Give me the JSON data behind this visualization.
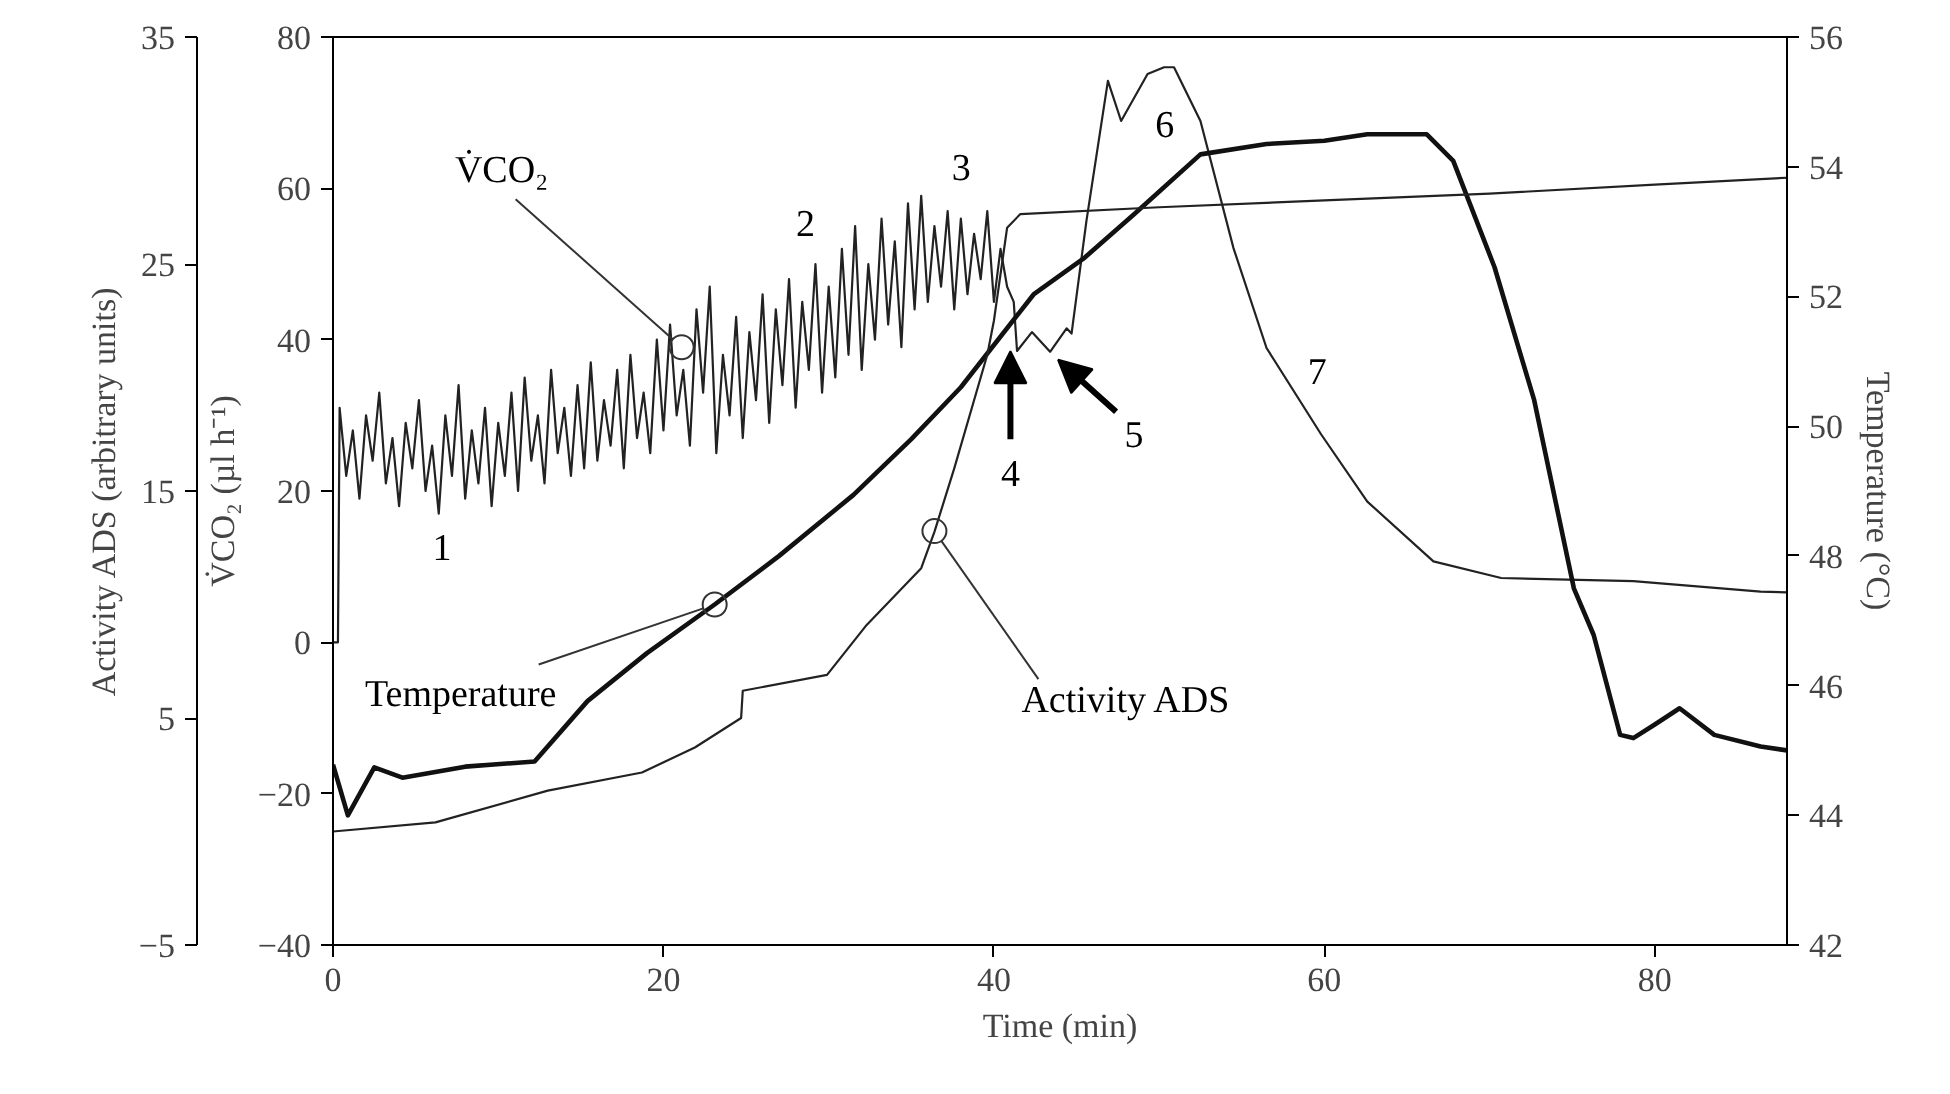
{
  "chart_data": {
    "type": "line",
    "xlabel": "Time (min)",
    "ylabel": "V̇CO₂ (µl h⁻¹)",
    "y2label": "Temperature (°C)",
    "y3label": "Activity ADS (arbitrary units)",
    "xlim": [
      0,
      88
    ],
    "xticks": [
      0,
      20,
      40,
      60,
      80
    ],
    "ylim": [
      -40,
      80
    ],
    "yticks": [
      {
        "value": -40,
        "label": "−40"
      },
      {
        "value": -20,
        "label": "−20"
      },
      0,
      20,
      40,
      60,
      80
    ],
    "y2lim": [
      42,
      56
    ],
    "y2ticks": [
      42,
      44,
      46,
      48,
      50,
      52,
      54,
      56
    ],
    "y3lim": [
      -5,
      35
    ],
    "y3ticks": [
      {
        "value": -5,
        "label": "−5"
      },
      5,
      15,
      25,
      35
    ],
    "grid": false,
    "series": [
      {
        "color": "#222222",
        "axis": "y",
        "x": [
          0,
          0.3,
          0.4,
          0.8,
          1.2,
          1.6,
          2.0,
          2.4,
          2.8,
          3.2,
          3.6,
          4.0,
          4.4,
          4.8,
          5.2,
          5.6,
          6.0,
          6.4,
          6.8,
          7.2,
          7.6,
          8.0,
          8.4,
          8.8,
          9.2,
          9.6,
          10.0,
          10.4,
          10.8,
          11.2,
          11.6,
          12.0,
          12.4,
          12.8,
          13.2,
          13.6,
          14.0,
          14.4,
          14.8,
          15.2,
          15.6,
          16.0,
          16.4,
          16.8,
          17.2,
          17.6,
          18.0,
          18.4,
          18.8,
          19.2,
          19.6,
          20.0,
          20.4,
          20.8,
          21.2,
          21.6,
          22.0,
          22.4,
          22.8,
          23.2,
          23.6,
          24.0,
          24.4,
          24.8,
          25.2,
          25.6,
          26.0,
          26.4,
          26.8,
          27.2,
          27.6,
          28.0,
          28.4,
          28.8,
          29.2,
          29.6,
          30.0,
          30.4,
          30.8,
          31.2,
          31.6,
          32.0,
          32.4,
          32.8,
          33.2,
          33.6,
          34.0,
          34.4,
          34.8,
          35.2,
          35.6,
          36.0,
          36.4,
          36.8,
          37.2,
          37.6,
          38.0,
          38.4,
          38.8,
          39.2,
          39.6,
          40.0,
          40.4,
          40.8,
          41.2,
          41.4,
          42.3,
          43.4,
          44.4,
          44.7,
          45.6,
          46.9,
          47.7,
          49.3,
          50.3,
          50.9,
          52.5,
          54.5,
          56.5,
          59.8,
          62.6,
          66.6,
          70.7,
          78.7,
          86.4,
          88
        ],
        "values": [
          0,
          0,
          31,
          22,
          28,
          19,
          30,
          24,
          33,
          21,
          27,
          18,
          29,
          23,
          32,
          20,
          26,
          17,
          30,
          22,
          34,
          19,
          28,
          21,
          31,
          18,
          29,
          22,
          33,
          20,
          35,
          24,
          30,
          21,
          36,
          25,
          31,
          22,
          34,
          23,
          37,
          24,
          32,
          26,
          36,
          23,
          38,
          27,
          33,
          25,
          40,
          28,
          42,
          30,
          36,
          26,
          44,
          33,
          47,
          25,
          38,
          30,
          43,
          27,
          41,
          32,
          46,
          29,
          44,
          34,
          48,
          31,
          45,
          36,
          50,
          33,
          47,
          35,
          52,
          38,
          55,
          36,
          50,
          40,
          56,
          42,
          53,
          39,
          58,
          44,
          59,
          45,
          55,
          47,
          57,
          44,
          56,
          46,
          54,
          48,
          57,
          45,
          52,
          47,
          45,
          38.5,
          41,
          38.4,
          41.5,
          40.8,
          55.7,
          74.2,
          68.9,
          75.1,
          76,
          76,
          68.9,
          52.1,
          38.9,
          27.5,
          18.6,
          10.7,
          8.5,
          8.1,
          6.7,
          6.6
        ]
      },
      {
        "color": "#111111",
        "axis": "y2",
        "x": [
          0,
          0.9,
          2.5,
          4.2,
          8,
          12.2,
          15.4,
          19,
          23.1,
          27,
          31.5,
          35,
          38,
          42.4,
          45.5,
          48.5,
          52.5,
          56.5,
          60,
          62.6,
          66.2,
          67.8,
          70.3,
          72.7,
          75.1,
          76.3,
          77.9,
          78.7,
          80,
          81.5,
          83.6,
          86.4,
          88
        ],
        "values": [
          44.78,
          44.0,
          44.74,
          44.58,
          44.75,
          44.83,
          45.76,
          46.5,
          47.25,
          48.0,
          48.94,
          49.8,
          50.6,
          52.03,
          52.6,
          53.27,
          54.19,
          54.35,
          54.4,
          54.5,
          54.5,
          54.09,
          52.45,
          50.4,
          47.5,
          46.78,
          45.24,
          45.19,
          45.4,
          45.65,
          45.24,
          45.06,
          45.0
        ]
      },
      {
        "color": "#222222",
        "axis": "y3",
        "x": [
          0,
          6.2,
          13,
          18.7,
          21.9,
          24.7,
          24.8,
          29.9,
          32.3,
          35.6,
          36.4,
          37.6,
          39.6,
          40.0,
          40.8,
          41.6,
          50,
          60,
          70,
          80,
          88
        ],
        "values": [
          0.0,
          0.4,
          1.8,
          2.6,
          3.7,
          5.0,
          6.2,
          6.9,
          9.1,
          11.6,
          13.2,
          16.0,
          21.0,
          22.5,
          26.6,
          27.2,
          27.5,
          27.8,
          28.1,
          28.5,
          28.8
        ]
      }
    ],
    "annotations": [
      "1",
      "2",
      "3",
      {
        "text": "4",
        "x": 41,
        "y": 39
      },
      {
        "text": "5",
        "x": 43.4,
        "y": 38.4
      },
      "6",
      "7",
      {
        "text": "V̇CO₂",
        "x": 21.1,
        "y": 39
      },
      {
        "text": "Temperature",
        "x": 23.1,
        "y": 5.0
      },
      {
        "text": "Activity ADS",
        "x": 36.4,
        "y": 14.7
      }
    ]
  }
}
